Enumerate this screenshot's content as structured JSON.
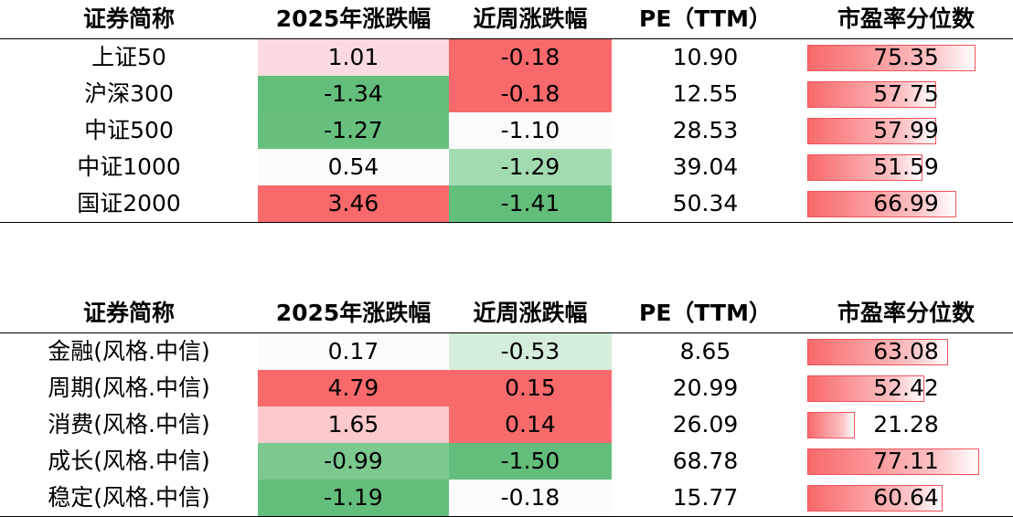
{
  "headers": [
    "证券简称",
    "2025年涨跌幅",
    "近周涨跌幅",
    "PE（TTM）",
    "市盈率分位数"
  ],
  "colors": {
    "red_strong": "#f8696b",
    "red_light": "#fcdbe0",
    "red_pale": "#fcc9cd",
    "green_strong": "#63be7b",
    "green_mid": "#7cc98f",
    "green_light": "#a3dbb1",
    "green_pale": "#d4eedb",
    "neutral": "#fcfcff",
    "bar_border": "#f2545b"
  },
  "chart_data": [
    {
      "type": "table",
      "columns": [
        "证券简称",
        "2025年涨跌幅",
        "近周涨跌幅",
        "PE（TTM）",
        "市盈率分位数"
      ],
      "rows": [
        {
          "name": "上证50",
          "ytd": "1.01",
          "week": "-0.18",
          "pe": "10.90",
          "pct": "75.35",
          "pct_value": 75.35,
          "ytd_color": "#fcdbe0",
          "week_color": "#f8696b"
        },
        {
          "name": "沪深300",
          "ytd": "-1.34",
          "week": "-0.18",
          "pe": "12.55",
          "pct": "57.75",
          "pct_value": 57.75,
          "ytd_color": "#63be7b",
          "week_color": "#f8696b"
        },
        {
          "name": "中证500",
          "ytd": "-1.27",
          "week": "-1.10",
          "pe": "28.53",
          "pct": "57.99",
          "pct_value": 57.99,
          "ytd_color": "#67c07e",
          "week_color": "#fcfcff"
        },
        {
          "name": "中证1000",
          "ytd": "0.54",
          "week": "-1.29",
          "pe": "39.04",
          "pct": "51.59",
          "pct_value": 51.59,
          "ytd_color": "#fcfcff",
          "week_color": "#a3dbb1"
        },
        {
          "name": "国证2000",
          "ytd": "3.46",
          "week": "-1.41",
          "pe": "50.34",
          "pct": "66.99",
          "pct_value": 66.99,
          "ytd_color": "#f8696b",
          "week_color": "#63be7b"
        }
      ]
    },
    {
      "type": "table",
      "columns": [
        "证券简称",
        "2025年涨跌幅",
        "近周涨跌幅",
        "PE（TTM）",
        "市盈率分位数"
      ],
      "rows": [
        {
          "name": "金融(风格.中信)",
          "ytd": "0.17",
          "week": "-0.53",
          "pe": "8.65",
          "pct": "63.08",
          "pct_value": 63.08,
          "ytd_color": "#fcfcff",
          "week_color": "#d4eedb"
        },
        {
          "name": "周期(风格.中信)",
          "ytd": "4.79",
          "week": "0.15",
          "pe": "20.99",
          "pct": "52.42",
          "pct_value": 52.42,
          "ytd_color": "#f8696b",
          "week_color": "#f8696b"
        },
        {
          "name": "消费(风格.中信)",
          "ytd": "1.65",
          "week": "0.14",
          "pe": "26.09",
          "pct": "21.28",
          "pct_value": 21.28,
          "ytd_color": "#fcc9cd",
          "week_color": "#f86b6d"
        },
        {
          "name": "成长(风格.中信)",
          "ytd": "-0.99",
          "week": "-1.50",
          "pe": "68.78",
          "pct": "77.11",
          "pct_value": 77.11,
          "ytd_color": "#7cc98f",
          "week_color": "#63be7b"
        },
        {
          "name": "稳定(风格.中信)",
          "ytd": "-1.19",
          "week": "-0.18",
          "pe": "15.77",
          "pct": "60.64",
          "pct_value": 60.64,
          "ytd_color": "#63be7b",
          "week_color": "#fcfcff"
        }
      ]
    }
  ]
}
